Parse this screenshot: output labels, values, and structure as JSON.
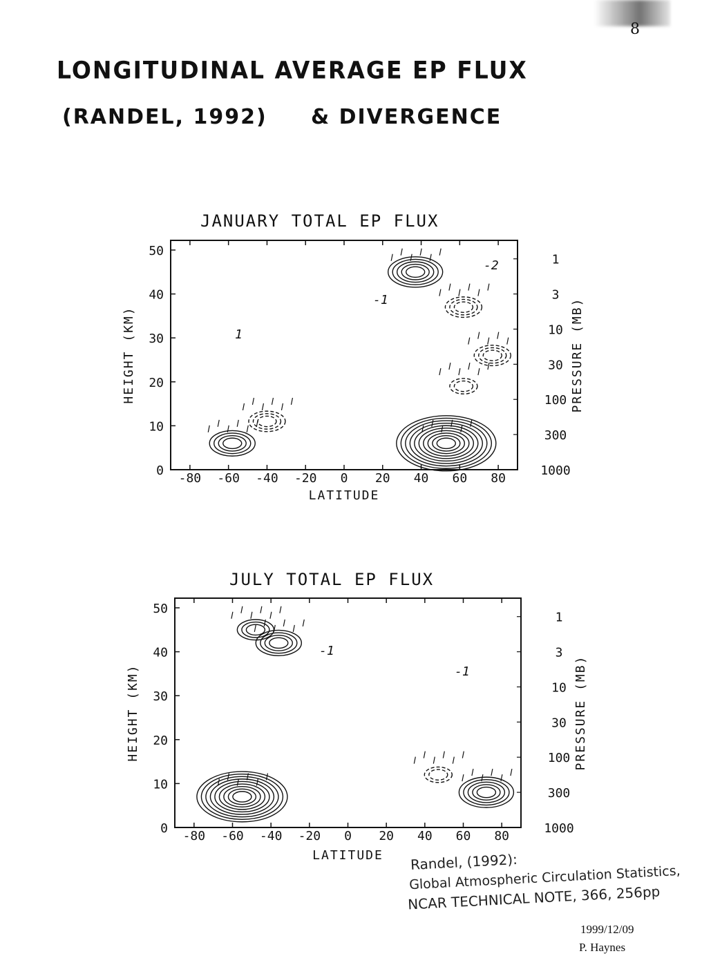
{
  "page": {
    "title_line1": "LONGITUDINAL AVERAGE  EP FLUX",
    "title_line2": "(RANDEL, 1992)",
    "title_line2b": "&  DIVERGENCE",
    "page_number": "8",
    "reference": [
      "Randel, (1992):",
      "Global Atmospheric Circulation Statistics,",
      "NCAR TECHNICAL NOTE, 366, 256pp"
    ],
    "date": "1999/12/09",
    "author": "P. Haynes"
  },
  "chart_data": [
    {
      "type": "contour",
      "title": "JANUARY TOTAL EP FLUX",
      "xlabel": "LATITUDE",
      "ylabel": "HEIGHT (KM)",
      "y2label": "PRESSURE (MB)",
      "xlim": [
        -90,
        90
      ],
      "ylim": [
        0,
        50
      ],
      "xticks": [
        -80,
        -60,
        -40,
        -20,
        0,
        20,
        40,
        60,
        80
      ],
      "yticks": [
        0,
        10,
        20,
        30,
        40,
        50
      ],
      "pressure_ticks": [
        {
          "p": "1",
          "z": 48
        },
        {
          "p": "3",
          "z": 40
        },
        {
          "p": "10",
          "z": 32
        },
        {
          "p": "30",
          "z": 24
        },
        {
          "p": "100",
          "z": 16
        },
        {
          "p": "300",
          "z": 8
        },
        {
          "p": "1000",
          "z": 0
        }
      ],
      "features": [
        {
          "kind": "convergence",
          "lat": -58,
          "z": 6,
          "rings": 4
        },
        {
          "kind": "divergence",
          "lat": -40,
          "z": 11,
          "rings": 3
        },
        {
          "kind": "convergence",
          "lat": 53,
          "z": 6,
          "rings": 10
        },
        {
          "kind": "convergence",
          "lat": 37,
          "z": 45,
          "rings": 5
        },
        {
          "kind": "divergence",
          "lat": 62,
          "z": 37,
          "rings": 3
        },
        {
          "kind": "divergence",
          "lat": 77,
          "z": 26,
          "rings": 3
        },
        {
          "kind": "divergence",
          "lat": 62,
          "z": 19,
          "rings": 2
        }
      ],
      "annotations": [
        "-2",
        "-1",
        "1"
      ]
    },
    {
      "type": "contour",
      "title": "JULY TOTAL EP FLUX",
      "xlabel": "LATITUDE",
      "ylabel": "HEIGHT (KM)",
      "y2label": "PRESSURE (MB)",
      "xlim": [
        -90,
        90
      ],
      "ylim": [
        0,
        50
      ],
      "xticks": [
        -80,
        -60,
        -40,
        -20,
        0,
        20,
        40,
        60,
        80
      ],
      "yticks": [
        0,
        10,
        20,
        30,
        40,
        50
      ],
      "pressure_ticks": [
        {
          "p": "1",
          "z": 48
        },
        {
          "p": "3",
          "z": 40
        },
        {
          "p": "10",
          "z": 32
        },
        {
          "p": "30",
          "z": 24
        },
        {
          "p": "100",
          "z": 16
        },
        {
          "p": "300",
          "z": 8
        },
        {
          "p": "1000",
          "z": 0
        }
      ],
      "features": [
        {
          "kind": "convergence",
          "lat": -55,
          "z": 7,
          "rings": 9
        },
        {
          "kind": "convergence",
          "lat": -48,
          "z": 45,
          "rings": 3
        },
        {
          "kind": "convergence",
          "lat": -36,
          "z": 42,
          "rings": 4
        },
        {
          "kind": "divergence",
          "lat": 47,
          "z": 12,
          "rings": 2
        },
        {
          "kind": "convergence",
          "lat": 72,
          "z": 8,
          "rings": 5
        }
      ],
      "annotations": [
        "-1",
        "-1"
      ]
    }
  ]
}
